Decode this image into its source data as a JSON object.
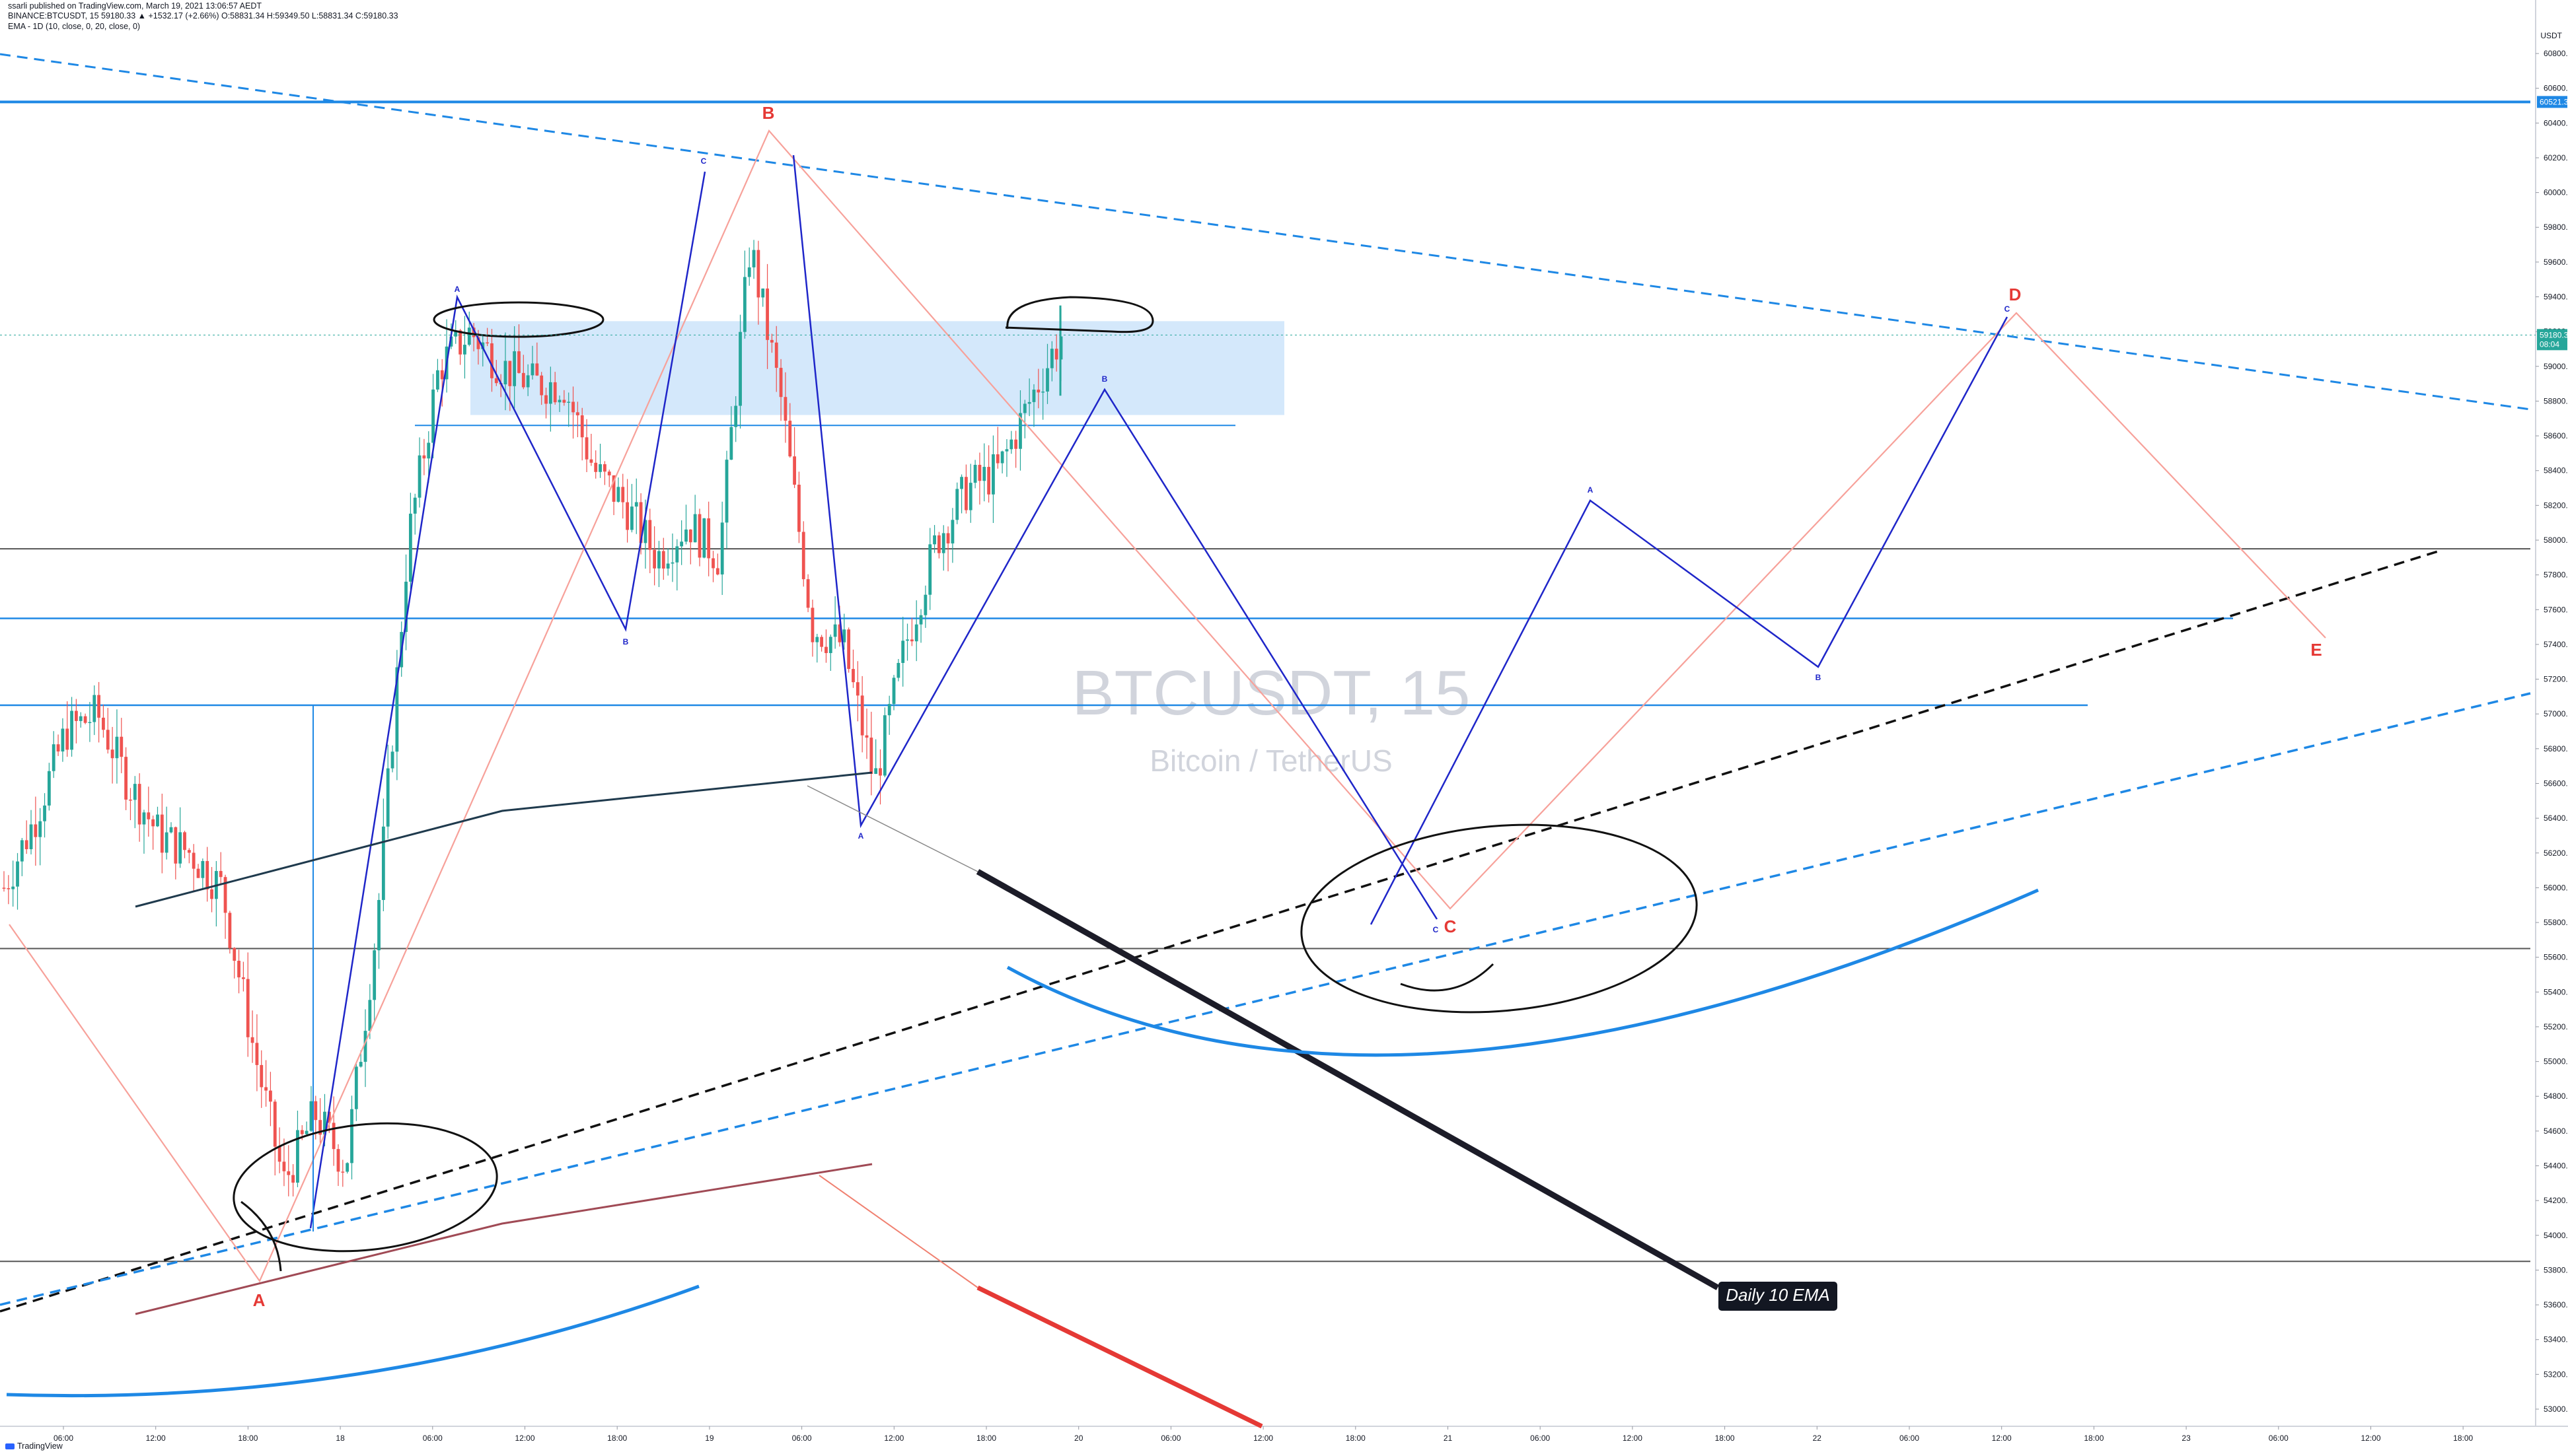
{
  "header": {
    "published": "ssarli published on TradingView.com, March 19, 2021 13:06:57 AEDT",
    "ticker": "BINANCE:BTCUSDT, 15",
    "ohlc_prefix": "59180.33 ▲ +1532.17 (+2.66%)",
    "ohlc": "O:58831.34  H:59349.50  L:58831.34  C:59180.33",
    "indicator": "EMA - 1D (10, close, 0, 20, close, 0)"
  },
  "watermark": {
    "symbol": "BTCUSDT, 15",
    "name": "Bitcoin / TetherUS"
  },
  "footer": {
    "brand": "TradingView"
  },
  "colors": {
    "blue": "#1e88e5",
    "navy": "#1f26c9",
    "salmon": "#f7a19a",
    "red": "#e53935",
    "dark": "#1a1a2e",
    "up": "#26a69a",
    "down": "#ef5350",
    "zone": "#cfe5fb",
    "axis_text": "#131722"
  },
  "chart_data": {
    "type": "candlestick",
    "symbol": "BTCUSDT",
    "interval": "15",
    "currency": "USDT",
    "ylim": [
      52800,
      61000
    ],
    "y_ticks": [
      53000,
      53200,
      53400,
      53600,
      53800,
      54000,
      54200,
      54400,
      54600,
      54800,
      55000,
      55200,
      55400,
      55600,
      55800,
      56000,
      56200,
      56400,
      56600,
      56800,
      57000,
      57200,
      57400,
      57600,
      57800,
      58000,
      58200,
      58400,
      58600,
      58800,
      59000,
      59200,
      59400,
      59600,
      59800,
      60000,
      60200,
      60400,
      60600,
      60800
    ],
    "x_ticks": [
      "06:00",
      "12:00",
      "18:00",
      "18",
      "06:00",
      "12:00",
      "18:00",
      "19",
      "06:00",
      "12:00",
      "18:00",
      "20",
      "06:00",
      "12:00",
      "18:00",
      "21",
      "06:00",
      "12:00",
      "18:00",
      "22",
      "06:00",
      "12:00",
      "18:00",
      "23",
      "06:00",
      "12:00",
      "18:00"
    ],
    "price_labels": [
      {
        "value": 60521.3,
        "label": "60521.30",
        "color": "#1e88e5"
      },
      {
        "value": 59180.33,
        "label": "59180.33",
        "sub": "08:04",
        "color": "#26a69a"
      }
    ],
    "horizontal_levels": [
      60521.3,
      57950,
      57550,
      57050,
      55650,
      53850
    ],
    "wave_labels_red": [
      "A",
      "B",
      "C",
      "D",
      "E"
    ],
    "wave_labels_blue": [
      "A",
      "B",
      "C",
      "A",
      "B",
      "C",
      "A",
      "B",
      "C"
    ],
    "annotation": "Daily 10 EMA",
    "candles_sketch": [
      [
        "04:00",
        56000
      ],
      [
        "06:00",
        56400
      ],
      [
        "08:00",
        56900
      ],
      [
        "10:00",
        57000
      ],
      [
        "12:00",
        56600
      ],
      [
        "14:00",
        56300
      ],
      [
        "16:00",
        56200
      ],
      [
        "18:00",
        56000
      ],
      [
        "20:00",
        55100
      ],
      [
        "22:00",
        54300
      ],
      [
        "00:00",
        54700
      ],
      [
        "02:00",
        54400
      ],
      [
        "04:00",
        55800
      ],
      [
        "06:00",
        58000
      ],
      [
        "08:00",
        59000
      ],
      [
        "10:00",
        59200
      ],
      [
        "12:00",
        59000
      ],
      [
        "14:00",
        58900
      ],
      [
        "16:00",
        58900
      ],
      [
        "18:00",
        58400
      ],
      [
        "20:00",
        58200
      ],
      [
        "22:00",
        57900
      ],
      [
        "00:00",
        58100
      ],
      [
        "02:00",
        57900
      ],
      [
        "04:00",
        59700
      ],
      [
        "06:00",
        58800
      ],
      [
        "08:00",
        57500
      ],
      [
        "10:00",
        57400
      ],
      [
        "12:00",
        56600
      ],
      [
        "14:00",
        57400
      ],
      [
        "16:00",
        58000
      ],
      [
        "18:00",
        58300
      ],
      [
        "20:00",
        58400
      ],
      [
        "22:00",
        58800
      ],
      [
        "00:00",
        59180
      ]
    ]
  }
}
